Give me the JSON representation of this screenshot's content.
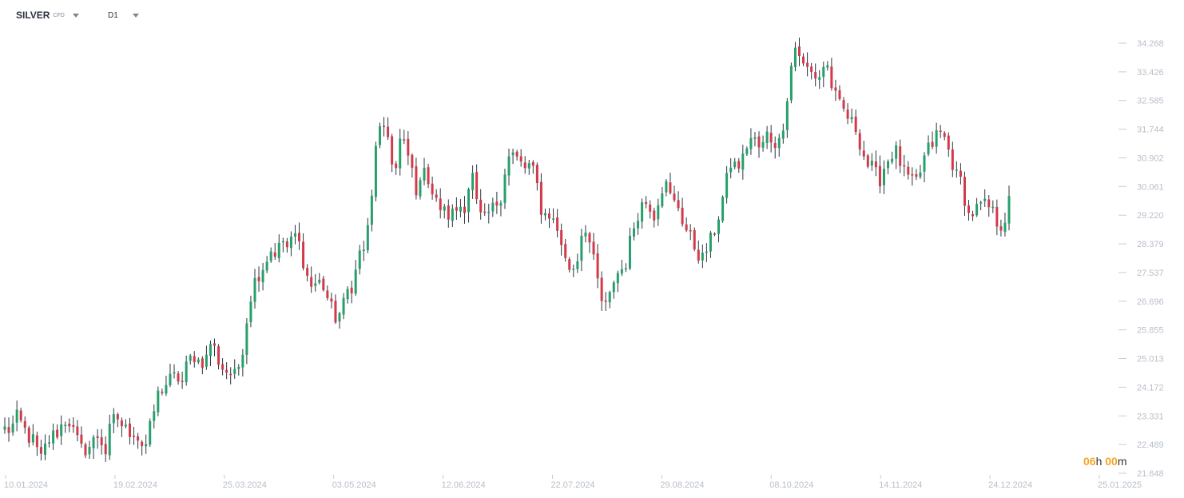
{
  "header": {
    "symbol": "SILVER",
    "instrument_type": "CFD",
    "timeframe": "D1"
  },
  "countdown": {
    "hours": "06",
    "hours_unit": "h",
    "minutes": "00",
    "minutes_unit": "m"
  },
  "colors": {
    "up": "#26a06b",
    "down": "#d23a4a",
    "axis_text": "#b8bfc8",
    "countdown": "#f5a623"
  },
  "chart_data": {
    "type": "candlestick",
    "y_ticks": [
      "34.268",
      "33.426",
      "32.585",
      "31.744",
      "30.902",
      "30.061",
      "29.220",
      "28.379",
      "27.537",
      "26.696",
      "25.855",
      "25.013",
      "24.172",
      "23.331",
      "22.489",
      "21.648"
    ],
    "x_ticks": [
      "10.01.2024",
      "19.02.2024",
      "25.03.2024",
      "03.05.2024",
      "12.06.2024",
      "22.07.2024",
      "29.08.2024",
      "08.10.2024",
      "14.11.2024",
      "24.12.2024",
      "25.01.2025"
    ],
    "ylim": [
      21.648,
      34.268
    ],
    "close_path": [
      22.95,
      22.9,
      23.3,
      23.05,
      22.7,
      22.6,
      22.0,
      22.5,
      22.75,
      22.85,
      23.2,
      23.15,
      22.7,
      22.35,
      22.35,
      22.6,
      22.8,
      22.2,
      23.15,
      23.3,
      23.0,
      22.85,
      22.9,
      22.5,
      22.5,
      23.3,
      24.0,
      24.2,
      24.4,
      24.5,
      24.3,
      24.95,
      25.1,
      24.9,
      24.95,
      25.6,
      25.0,
      24.7,
      24.6,
      24.5,
      25.0,
      26.2,
      27.2,
      27.5,
      27.8,
      28.2,
      28.1,
      28.5,
      28.2,
      28.7,
      28.3,
      27.5,
      27.1,
      27.3,
      27.1,
      26.6,
      26.2,
      26.4,
      27.0,
      27.2,
      28.1,
      28.3,
      29.4,
      31.8,
      31.6,
      31.5,
      30.3,
      31.5,
      31.1,
      30.5,
      29.7,
      30.8,
      30.0,
      29.6,
      29.4,
      29.2,
      29.3,
      29.5,
      29.5,
      30.6,
      29.4,
      29.0,
      29.3,
      29.5,
      29.8,
      30.9,
      31.0,
      30.8,
      30.6,
      30.7,
      30.2,
      29.2,
      29.3,
      29.0,
      28.6,
      27.8,
      27.6,
      28.0,
      29.1,
      28.4,
      27.6,
      26.7,
      26.5,
      27.3,
      27.6,
      27.7,
      28.6,
      29.2,
      29.6,
      29.6,
      29.2,
      30.0,
      30.1,
      29.6,
      29.5,
      28.9,
      28.6,
      28.2,
      27.9,
      28.3,
      28.7,
      29.3,
      30.1,
      30.8,
      30.6,
      30.9,
      31.5,
      31.4,
      31.1,
      31.6,
      31.4,
      31.3,
      32.1,
      33.5,
      34.3,
      33.6,
      33.5,
      33.3,
      33.3,
      33.8,
      33.0,
      32.5,
      32.3,
      32.0,
      31.8,
      31.2,
      30.7,
      30.6,
      30.2,
      30.7,
      31.0,
      31.1,
      30.5,
      30.3,
      30.1,
      30.5,
      31.1,
      31.3,
      31.7,
      31.5,
      31.0,
      30.4,
      30.2,
      29.2,
      29.3,
      29.5,
      29.5,
      29.4,
      29.0,
      28.9,
      29.6
    ]
  }
}
